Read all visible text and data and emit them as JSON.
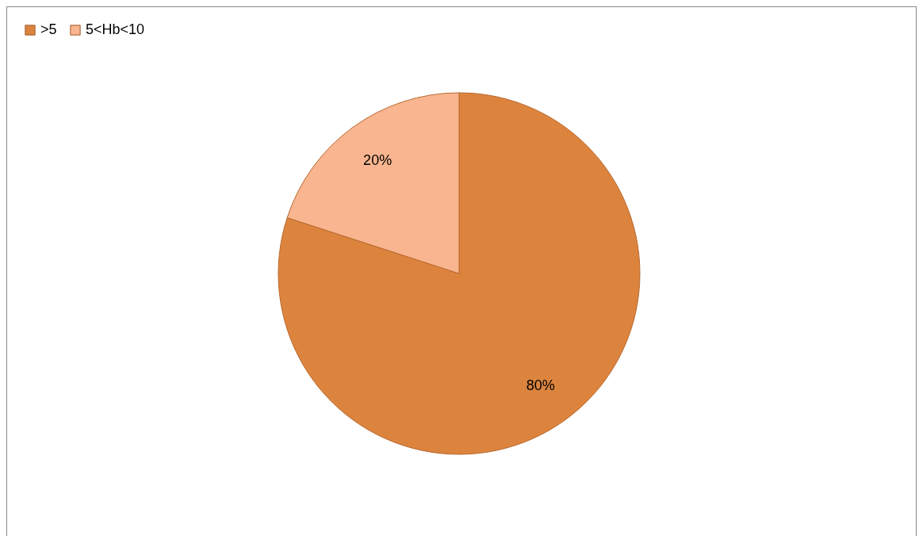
{
  "chart_data": {
    "type": "pie",
    "categories": [
      ">5",
      "5<Hb<10"
    ],
    "values": [
      80,
      20
    ],
    "colors": [
      "#dc843e",
      "#f8b58f"
    ],
    "value_labels": [
      "80%",
      "20%"
    ],
    "legend": "top"
  }
}
